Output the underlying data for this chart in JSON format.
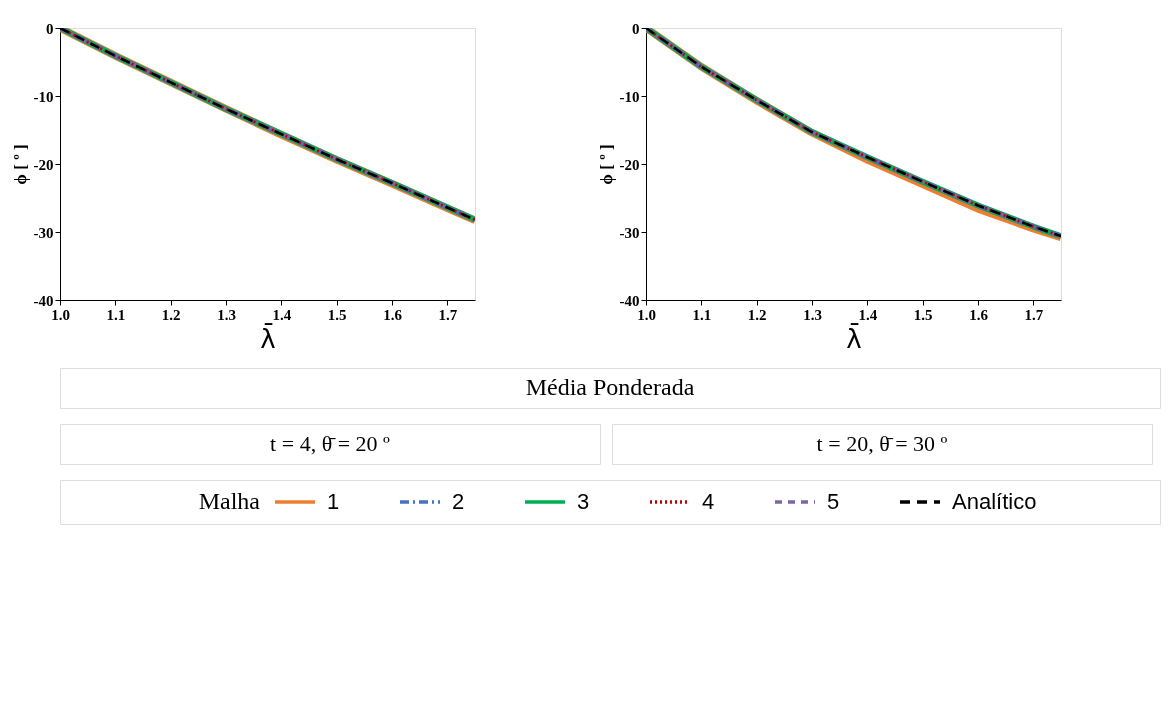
{
  "chart_data": [
    {
      "type": "line",
      "xlabel": "λ̄",
      "ylabel": "ϕ [ º ]",
      "subtitle": "t = 4,   θ̄ = 20 º",
      "annotations": [
        "Média Ponderada"
      ],
      "legend_title": "Malha",
      "legend": "bottom",
      "grid": false,
      "marker": "none",
      "xlim": [
        1.0,
        1.75
      ],
      "xticks": [
        {
          "value": 1.0,
          "label": "1.0"
        },
        1.1,
        1.2,
        1.3,
        1.4,
        1.5,
        1.6,
        1.7
      ],
      "ylim": [
        -40,
        0
      ],
      "yticks": [
        -40,
        -30,
        -20,
        -10,
        0
      ],
      "x": [
        1.0,
        1.1,
        1.2,
        1.3,
        1.4,
        1.5,
        1.6,
        1.7,
        1.75
      ],
      "series": [
        {
          "name": "1",
          "color": "#ed7d31",
          "line_style": "solid",
          "values": [
            0,
            -4.1,
            -8.0,
            -11.9,
            -15.7,
            -19.4,
            -22.9,
            -26.5,
            -28.3
          ]
        },
        {
          "name": "2",
          "color": "#4472c4",
          "line_style": "dashed",
          "values": [
            0,
            -4.1,
            -8.0,
            -11.9,
            -15.6,
            -19.3,
            -22.8,
            -26.4,
            -28.2
          ]
        },
        {
          "name": "3",
          "color": "#00b050",
          "line_style": "solid",
          "values": [
            0,
            -4.1,
            -8.0,
            -11.9,
            -15.6,
            -19.3,
            -22.8,
            -26.4,
            -28.2
          ]
        },
        {
          "name": "4",
          "color": "#c00000",
          "line_style": "dotted",
          "values": [
            0,
            -4.1,
            -8.0,
            -11.9,
            -15.6,
            -19.3,
            -22.8,
            -26.4,
            -28.2
          ]
        },
        {
          "name": "5",
          "color": "#8064a2",
          "line_style": "dashed",
          "values": [
            0,
            -4.1,
            -8.0,
            -11.9,
            -15.6,
            -19.3,
            -22.8,
            -26.4,
            -28.2
          ]
        },
        {
          "name": "Analítico",
          "color": "#000000",
          "line_style": "dashed",
          "values": [
            0,
            -4.1,
            -8.0,
            -11.9,
            -15.6,
            -19.3,
            -22.8,
            -26.4,
            -28.2
          ]
        }
      ]
    },
    {
      "type": "line",
      "xlabel": "λ̄",
      "ylabel": "ϕ [ º ]",
      "subtitle": "t = 20,   θ̄ = 30 º",
      "grid": false,
      "marker": "none",
      "xlim": [
        1.0,
        1.75
      ],
      "xticks": [
        {
          "value": 1.0,
          "label": "1.0"
        },
        1.1,
        1.2,
        1.3,
        1.4,
        1.5,
        1.6,
        1.7
      ],
      "ylim": [
        -40,
        0
      ],
      "yticks": [
        -40,
        -30,
        -20,
        -10,
        0
      ],
      "x": [
        1.0,
        1.1,
        1.2,
        1.3,
        1.4,
        1.5,
        1.6,
        1.7,
        1.75
      ],
      "series": [
        {
          "color": "#ed7d31",
          "line_style": "solid",
          "values": [
            0,
            -5.7,
            -10.7,
            -15.4,
            -19.4,
            -23.0,
            -26.6,
            -29.5,
            -30.8
          ]
        },
        {
          "color": "#4472c4",
          "line_style": "dashed",
          "values": [
            0,
            -5.7,
            -10.6,
            -15.3,
            -19.0,
            -22.6,
            -26.1,
            -29.2,
            -30.6
          ]
        },
        {
          "color": "#00b050",
          "line_style": "solid",
          "values": [
            0,
            -5.7,
            -10.6,
            -15.3,
            -19.0,
            -22.6,
            -26.1,
            -29.2,
            -30.6
          ]
        },
        {
          "color": "#c00000",
          "line_style": "dotted",
          "values": [
            0,
            -5.7,
            -10.6,
            -15.3,
            -19.0,
            -22.6,
            -26.1,
            -29.2,
            -30.6
          ]
        },
        {
          "color": "#8064a2",
          "line_style": "dashed",
          "values": [
            0,
            -5.7,
            -10.6,
            -15.3,
            -19.0,
            -22.6,
            -26.1,
            -29.2,
            -30.6
          ]
        },
        {
          "color": "#000000",
          "line_style": "dashed",
          "values": [
            0,
            -5.7,
            -10.6,
            -15.3,
            -19.0,
            -22.6,
            -26.1,
            -29.2,
            -30.6
          ]
        }
      ]
    }
  ]
}
